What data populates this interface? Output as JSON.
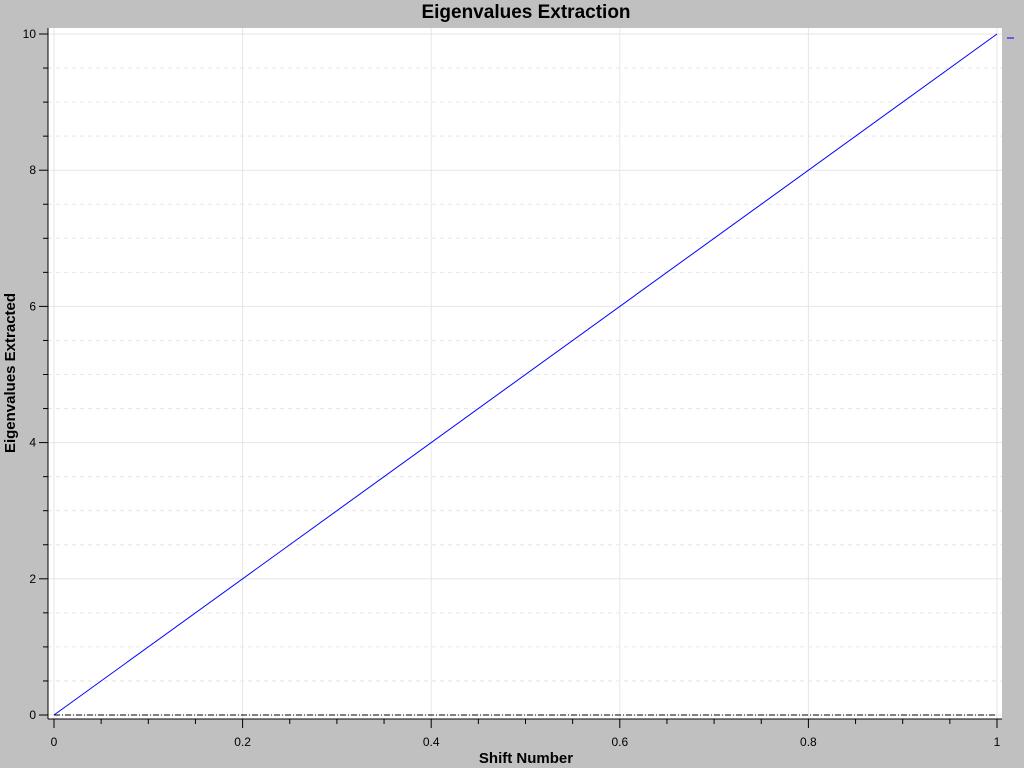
{
  "chart_data": {
    "type": "line",
    "title": "Eigenvalues Extraction",
    "xlabel": "Shift Number",
    "ylabel": "Eigenvalues Extracted",
    "xlim": [
      0,
      1
    ],
    "ylim": [
      0,
      10
    ],
    "x_ticks": [
      0,
      0.2,
      0.4,
      0.6,
      0.8,
      1
    ],
    "x_tick_labels": [
      "0",
      "0.2",
      "0.4",
      "0.6",
      "0.8",
      "1"
    ],
    "y_ticks": [
      0,
      2,
      4,
      6,
      8,
      10
    ],
    "y_tick_labels": [
      "0",
      "2",
      "4",
      "6",
      "8",
      "10"
    ],
    "grid": true,
    "legend": "top-right",
    "series": [
      {
        "x": [
          0,
          1
        ],
        "y": [
          0,
          10
        ],
        "color": "#0000ff",
        "style": "solid"
      },
      {
        "x": [
          0,
          1
        ],
        "y": [
          0,
          0
        ],
        "color": "#000000",
        "style": "dash-dot"
      }
    ],
    "colors": {
      "background": "#c0c0c0",
      "plot_area": "#ffffff",
      "grid": "#e6e6e6"
    }
  }
}
